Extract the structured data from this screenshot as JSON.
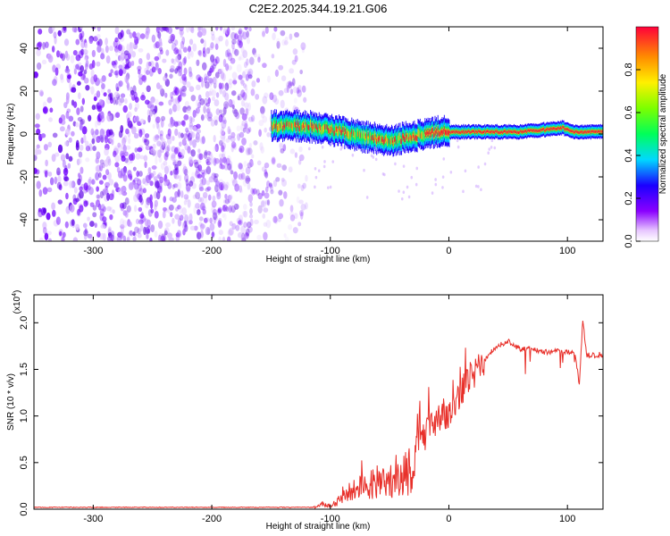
{
  "figure_title": "C2E2.2025.344.19.21.G06",
  "chart_data": [
    {
      "type": "heatmap",
      "title": "C2E2.2025.344.19.21.G06",
      "xlabel": "Height of straight line (km)",
      "ylabel": "Frequency (Hz)",
      "xlim": [
        -350,
        130
      ],
      "ylim": [
        -50,
        50
      ],
      "x_ticks": [
        -300,
        -200,
        -100,
        0,
        100
      ],
      "x_tick_labels": [
        "-300",
        "-200",
        "-100",
        "0",
        "100"
      ],
      "y_ticks": [
        -40,
        -20,
        0,
        20,
        40
      ],
      "y_tick_labels": [
        "-40",
        "-20",
        "0",
        "20",
        "40"
      ],
      "description_regions": {
        "noise_region_x": [
          -350,
          -120
        ],
        "signal_track": {
          "x": [
            -150,
            -130,
            -110,
            -90,
            -75,
            -60,
            -50,
            -40,
            -30,
            -20,
            -10,
            0,
            20,
            40,
            60,
            80,
            95,
            105,
            115,
            130
          ],
          "freq": [
            4,
            4,
            3,
            1,
            -1,
            -2,
            -3,
            -2,
            -1,
            0,
            1,
            1,
            1,
            1,
            1,
            2,
            3,
            1,
            1,
            1
          ]
        }
      },
      "colorbar": {
        "label": "Normalized spectral amplitude",
        "range": [
          0,
          1
        ],
        "ticks": [
          0.0,
          0.2,
          0.4,
          0.6,
          0.8
        ],
        "tick_labels": [
          "0.0",
          "0.2",
          "0.4",
          "0.6",
          "0.8"
        ]
      }
    },
    {
      "type": "line",
      "xlabel": "Height of straight line (km)",
      "ylabel": "SNR (10 * v/v)",
      "y_multiplier": "(x10",
      "y_multiplier_exp": "4",
      "y_multiplier_close": ")",
      "xlim": [
        -350,
        130
      ],
      "ylim": [
        0,
        2.3
      ],
      "x_ticks": [
        -300,
        -200,
        -100,
        0,
        100
      ],
      "x_tick_labels": [
        "-300",
        "-200",
        "-100",
        "0",
        "100"
      ],
      "y_ticks": [
        0.0,
        0.5,
        1.0,
        1.5,
        2.0
      ],
      "y_tick_labels": [
        "0.0",
        "0.5",
        "1.0",
        "1.5",
        "2.0"
      ],
      "series": [
        {
          "name": "SNR",
          "color": "#e8302a",
          "x": [
            -350,
            -250,
            -150,
            -112,
            -108,
            -100,
            -90,
            -80,
            -70,
            -60,
            -50,
            -40,
            -30,
            -25,
            -20,
            -10,
            0,
            10,
            20,
            30,
            40,
            50,
            60,
            70,
            80,
            90,
            100,
            106,
            110,
            113,
            116,
            120,
            130
          ],
          "y": [
            0.02,
            0.02,
            0.02,
            0.02,
            0.06,
            0.03,
            0.12,
            0.22,
            0.25,
            0.28,
            0.3,
            0.32,
            0.38,
            0.85,
            0.8,
            0.95,
            1.05,
            1.25,
            1.45,
            1.6,
            1.75,
            1.8,
            1.72,
            1.72,
            1.68,
            1.7,
            1.68,
            1.7,
            1.35,
            2.05,
            1.65,
            1.65,
            1.66
          ]
        }
      ]
    }
  ]
}
